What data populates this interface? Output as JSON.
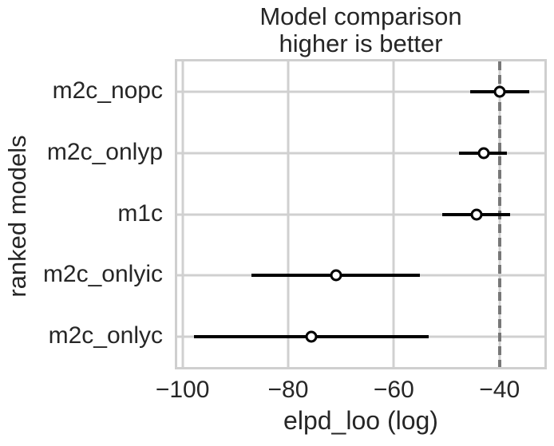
{
  "chart_data": {
    "type": "scatter",
    "title": "Model comparison",
    "subtitle": "higher is better",
    "xlabel": "elpd_loo (log)",
    "ylabel": "ranked models",
    "xlim": [
      -101,
      -31.5
    ],
    "x_ticks": [
      -100,
      -80,
      -60,
      -40
    ],
    "x_tick_labels": [
      "−100",
      "−80",
      "−60",
      "−40"
    ],
    "grid": true,
    "legend": false,
    "reference_line_x": -40,
    "series": [
      {
        "model": "m2c_nopc",
        "elpd_loo": -40.0,
        "error_low": -45.6,
        "error_high": -34.4
      },
      {
        "model": "m2c_onlyp",
        "elpd_loo": -43.0,
        "error_low": -47.6,
        "error_high": -38.6
      },
      {
        "model": "m1c",
        "elpd_loo": -44.3,
        "error_low": -50.9,
        "error_high": -38.0
      },
      {
        "model": "m2c_onlyic",
        "elpd_loo": -71.0,
        "error_low": -87.0,
        "error_high": -55.0
      },
      {
        "model": "m2c_onlyc",
        "elpd_loo": -75.6,
        "error_low": -97.8,
        "error_high": -53.4
      }
    ]
  },
  "style": {
    "text_color": "#262626",
    "grid_color": "#d0d0d0",
    "spine_color": "#cfcfcf",
    "error_bar_color": "#000000",
    "marker_fill": "#ffffff",
    "marker_edge": "#000000",
    "reference_line_color": "#777777",
    "background": "#ffffff"
  }
}
